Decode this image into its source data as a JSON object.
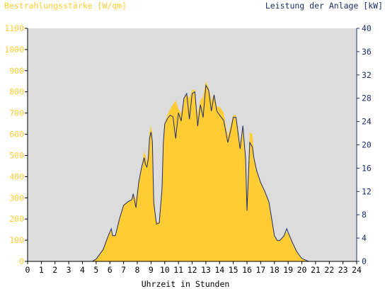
{
  "chart_data": {
    "type": "area",
    "title_left": "Bestrahlungsstärke [W/qm]",
    "title_right": "Leistung der Anlage [kW]",
    "xlabel": "Uhrzeit in Stunden",
    "grid": false,
    "background": "#dcdcdc",
    "colors": {
      "irradiance_fill": "#ffcc33",
      "power_line": "#1f2d6e",
      "left_axis_text": "#ffcc33",
      "right_axis_text": "#1f2d6e",
      "axis_line": "#000000"
    },
    "x_range": [
      0,
      24
    ],
    "x_ticks": [
      "0",
      "1",
      "2",
      "3",
      "4",
      "5",
      "6",
      "7",
      "8",
      "9",
      "10",
      "11",
      "12",
      "13",
      "14",
      "15",
      "16",
      "17",
      "18",
      "19",
      "20",
      "21",
      "22",
      "23",
      "24"
    ],
    "y_left_range": [
      0,
      1100
    ],
    "y_left_ticks": [
      "0",
      "100",
      "200",
      "300",
      "400",
      "500",
      "600",
      "700",
      "800",
      "900",
      "1000",
      "1100"
    ],
    "y_right_range": [
      0,
      40
    ],
    "y_right_ticks": [
      "0",
      "4",
      "8",
      "12",
      "16",
      "20",
      "24",
      "28",
      "32",
      "36",
      "40"
    ],
    "series": [
      {
        "name": "Bestrahlungsstärke",
        "axis": "left",
        "x": [
          0,
          4.7,
          5.0,
          5.5,
          5.9,
          6.1,
          6.2,
          6.4,
          6.7,
          7.0,
          7.3,
          7.6,
          7.7,
          7.9,
          8.1,
          8.3,
          8.5,
          8.6,
          8.7,
          8.8,
          8.9,
          9.0,
          9.1,
          9.2,
          9.4,
          9.6,
          9.8,
          9.9,
          10.0,
          10.2,
          10.4,
          10.6,
          10.8,
          11.0,
          11.2,
          11.4,
          11.6,
          11.8,
          12.0,
          12.2,
          12.4,
          12.6,
          12.8,
          13.0,
          13.2,
          13.4,
          13.6,
          13.8,
          14.0,
          14.3,
          14.6,
          14.8,
          15.0,
          15.2,
          15.5,
          15.7,
          15.9,
          16.0,
          16.2,
          16.4,
          16.5,
          16.7,
          17.0,
          17.3,
          17.6,
          17.8,
          18.0,
          18.2,
          18.4,
          18.7,
          18.9,
          19.1,
          19.3,
          19.6,
          19.8,
          20.0,
          20.3,
          20.5,
          24
        ],
        "values": [
          0,
          0,
          10,
          60,
          130,
          150,
          120,
          120,
          200,
          270,
          280,
          290,
          320,
          290,
          380,
          440,
          520,
          500,
          470,
          520,
          610,
          640,
          600,
          300,
          190,
          180,
          350,
          570,
          650,
          690,
          720,
          740,
          760,
          720,
          700,
          760,
          790,
          770,
          810,
          810,
          690,
          760,
          780,
          850,
          820,
          760,
          790,
          730,
          730,
          700,
          590,
          640,
          690,
          690,
          550,
          640,
          470,
          300,
          610,
          600,
          500,
          430,
          370,
          330,
          280,
          200,
          120,
          100,
          100,
          120,
          140,
          120,
          90,
          50,
          30,
          15,
          5,
          0,
          0
        ]
      },
      {
        "name": "Leistung der Anlage",
        "axis": "right",
        "x": [
          0,
          4.7,
          5.0,
          5.5,
          5.9,
          6.1,
          6.2,
          6.4,
          6.7,
          7.0,
          7.3,
          7.6,
          7.7,
          7.9,
          8.1,
          8.3,
          8.5,
          8.6,
          8.7,
          8.8,
          8.9,
          9.0,
          9.1,
          9.2,
          9.4,
          9.6,
          9.8,
          9.9,
          10.0,
          10.2,
          10.4,
          10.6,
          10.8,
          11.0,
          11.2,
          11.4,
          11.6,
          11.8,
          12.0,
          12.2,
          12.4,
          12.6,
          12.8,
          13.0,
          13.2,
          13.4,
          13.6,
          13.8,
          14.0,
          14.3,
          14.6,
          14.8,
          15.0,
          15.2,
          15.5,
          15.7,
          15.9,
          16.0,
          16.2,
          16.4,
          16.5,
          16.7,
          17.0,
          17.3,
          17.6,
          17.8,
          18.0,
          18.2,
          18.4,
          18.7,
          18.9,
          19.1,
          19.3,
          19.6,
          19.8,
          20.0,
          20.3,
          20.5,
          24
        ],
        "values": [
          0,
          0,
          0.4,
          2,
          4.5,
          5.6,
          4.4,
          4.4,
          7.3,
          9.6,
          10.2,
          10.6,
          11.6,
          9.2,
          13.5,
          16,
          17.8,
          16.6,
          16.2,
          17.6,
          21.2,
          22.2,
          20.6,
          10,
          6.4,
          6.6,
          12.4,
          20.4,
          23.6,
          24.5,
          25.1,
          24.8,
          21.1,
          25.5,
          24.1,
          28,
          28.8,
          24.4,
          28.8,
          29.1,
          23.2,
          26.9,
          24.7,
          30.2,
          29.4,
          25.8,
          28.6,
          25.8,
          25.1,
          24.2,
          20.4,
          22.4,
          24.7,
          24.7,
          19.3,
          23.3,
          17.5,
          8.7,
          20.4,
          19.6,
          17.8,
          15.6,
          13.5,
          12.0,
          10.2,
          7.3,
          4.4,
          3.6,
          3.6,
          4.4,
          5.6,
          4.4,
          3.3,
          1.8,
          1.1,
          0.5,
          0.2,
          0,
          0
        ]
      }
    ]
  }
}
